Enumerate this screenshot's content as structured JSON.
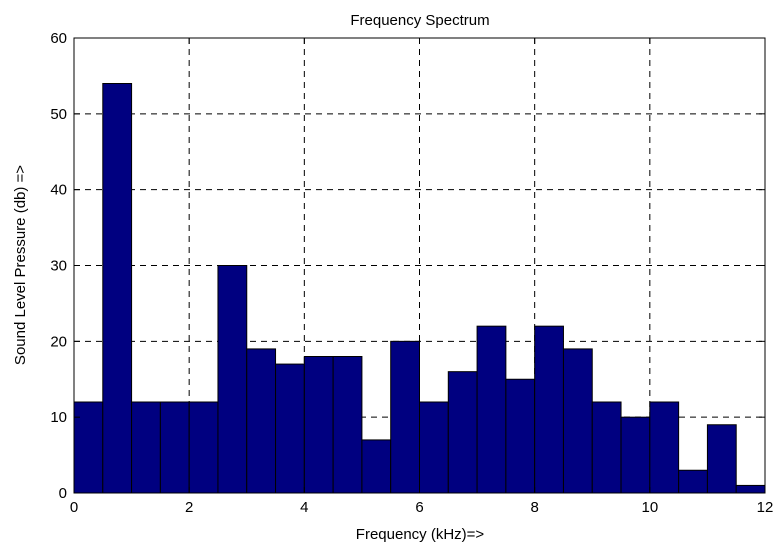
{
  "chart_data": {
    "type": "bar",
    "title": "Frequency Spectrum",
    "xlabel": "Frequency (kHz)=>",
    "ylabel": "Sound Level Pressure (db) =>",
    "xlim": [
      0,
      12
    ],
    "ylim": [
      0,
      60
    ],
    "xticks": [
      0,
      2,
      4,
      6,
      8,
      10,
      12
    ],
    "yticks": [
      0,
      10,
      20,
      30,
      40,
      50,
      60
    ],
    "grid": true,
    "bar_width": 0.5,
    "bar_color": "#000080",
    "x": [
      0.25,
      0.75,
      1.25,
      1.75,
      2.25,
      2.75,
      3.25,
      3.75,
      4.25,
      4.75,
      5.25,
      5.75,
      6.25,
      6.75,
      7.25,
      7.75,
      8.25,
      8.75,
      9.25,
      9.75,
      10.25,
      10.75,
      11.25,
      11.75
    ],
    "values": [
      12,
      54,
      12,
      12,
      12,
      30,
      19,
      17,
      18,
      18,
      7,
      20,
      12,
      16,
      22,
      15,
      22,
      19,
      12,
      10,
      12,
      3,
      9,
      1
    ]
  }
}
